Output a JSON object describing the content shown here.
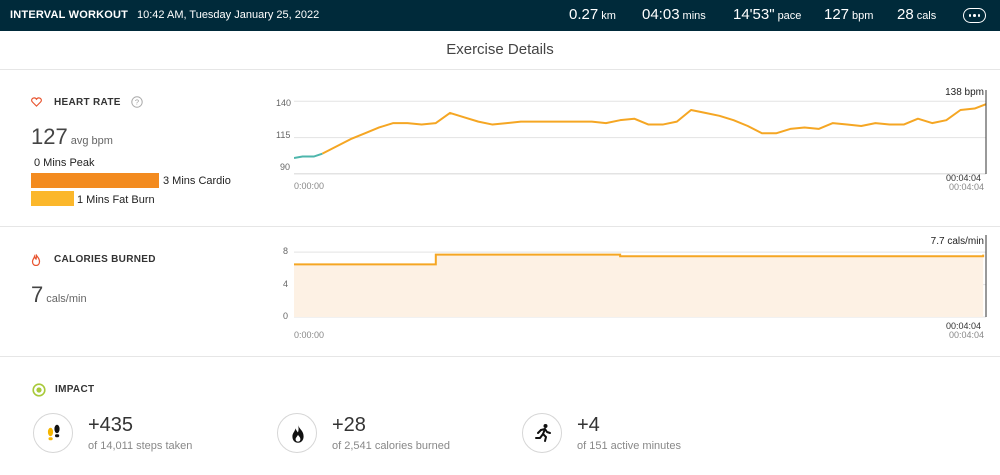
{
  "header": {
    "title": "INTERVAL WORKOUT",
    "datetime": "10:42 AM, Tuesday January 25, 2022",
    "stats": [
      {
        "value": "0.27",
        "unit": "km"
      },
      {
        "value": "04:03",
        "unit": "mins"
      },
      {
        "value": "14'53\"",
        "unit": "pace"
      },
      {
        "value": "127",
        "unit": "bpm"
      },
      {
        "value": "28",
        "unit": "cals"
      }
    ],
    "more_icon": "ellipsis-icon"
  },
  "page_title": "Exercise Details",
  "heart_rate": {
    "label": "HEART RATE",
    "icon": "heart-icon",
    "info_icon": "question-icon",
    "avg_value": "127",
    "avg_unit": "avg bpm",
    "zones": [
      {
        "label": "0 Mins Peak",
        "minutes": 0,
        "color": "#e65100"
      },
      {
        "label": "3 Mins Cardio",
        "minutes": 3,
        "color": "#f38b1f"
      },
      {
        "label": "1 Mins Fat Burn",
        "minutes": 1,
        "color": "#fbb72b"
      }
    ],
    "current_label": "138 bpm",
    "time_start": "0:00:00",
    "time_end_top": "00:04:04",
    "time_end_bottom": "00:04:04"
  },
  "calories": {
    "label": "CALORIES BURNED",
    "icon": "flame-icon",
    "value": "7",
    "unit": "cals/min",
    "current_label": "7.7 cals/min",
    "time_start": "0:00:00",
    "time_end_top": "00:04:04",
    "time_end_bottom": "00:04:04"
  },
  "impact": {
    "label": "IMPACT",
    "icon": "target-icon",
    "items": [
      {
        "value": "+435",
        "desc": "of 14,011 steps taken",
        "icon": "footsteps-icon"
      },
      {
        "value": "+28",
        "desc": "of 2,541 calories burned",
        "icon": "flame-icon"
      },
      {
        "value": "+4",
        "desc": "of 151 active minutes",
        "icon": "running-icon"
      }
    ]
  },
  "chart_data": [
    {
      "type": "line",
      "title": "",
      "xlabel": "",
      "ylabel": "",
      "y_ticks": [
        "90",
        "115",
        "140"
      ],
      "ylim": [
        90,
        145
      ],
      "xlim": [
        0,
        244
      ],
      "x": [
        0,
        3,
        7,
        10,
        15,
        20,
        25,
        30,
        35,
        40,
        45,
        50,
        55,
        60,
        65,
        70,
        75,
        80,
        85,
        90,
        95,
        100,
        105,
        110,
        115,
        120,
        125,
        130,
        135,
        140,
        145,
        150,
        155,
        160,
        165,
        170,
        175,
        180,
        185,
        190,
        195,
        200,
        205,
        210,
        215,
        220,
        225,
        230,
        235,
        240,
        244
      ],
      "series": [
        {
          "values": [
            101,
            102,
            102,
            104,
            109,
            114,
            118,
            122,
            125,
            125,
            124,
            125,
            132,
            129,
            126,
            124,
            125,
            126,
            126,
            126,
            126,
            126,
            126,
            125,
            127,
            128,
            124,
            124,
            126,
            134,
            132,
            130,
            127,
            123,
            118,
            118,
            121,
            122,
            121,
            125,
            124,
            123,
            125,
            124,
            124,
            128,
            125,
            127,
            134,
            135,
            138
          ]
        }
      ],
      "color_low": "#4db6ac",
      "color_high": "#f5a623"
    },
    {
      "type": "area",
      "title": "",
      "xlabel": "",
      "ylabel": "",
      "y_ticks": [
        "0",
        "4",
        "8"
      ],
      "ylim": [
        0,
        9.5
      ],
      "xlim": [
        0,
        244
      ],
      "x": [
        0,
        50,
        50,
        115,
        115,
        243,
        243
      ],
      "series": [
        {
          "values": [
            6.5,
            6.5,
            7.7,
            7.7,
            7.5,
            7.5,
            7.7
          ]
        }
      ],
      "color": "#f5a623",
      "fill": "#fdf1e4"
    }
  ]
}
